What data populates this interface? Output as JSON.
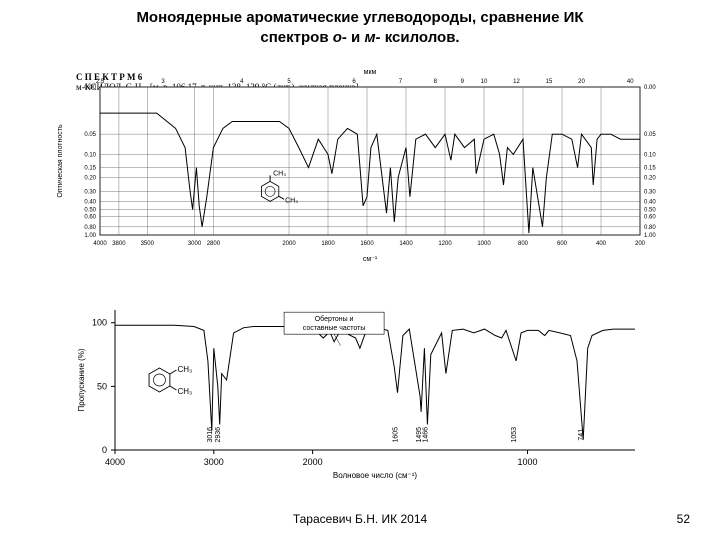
{
  "title_line1": "Моноядерные ароматические углеводороды, сравнение ИК",
  "title_line2": "спектров о- и м- ксилолов.",
  "spectr_header": "С П Е К Т Р  М  6",
  "spectr_sub": "м-КСИЛОЛ, С₈Н₁₀ [м. в. 106,17. т. кип. 138−139 °С (лит.). жидкая пленка].",
  "footer": "Тарасевич Б.Н.  ИК 2014",
  "page": "52",
  "chart_top": {
    "type": "line",
    "xlim": [
      4000,
      200
    ],
    "ylim": [
      0.0,
      1.0
    ],
    "x_axis_label": "см⁻¹",
    "y_axis_label": "Оптическая плотность",
    "top_axis_label": "мкм",
    "top_ticks": [
      2.5,
      3,
      4,
      5,
      6,
      7,
      8,
      9,
      10,
      12,
      15,
      20,
      40
    ],
    "x_ticks": [
      4000,
      3800,
      3500,
      3000,
      2800,
      2000,
      1800,
      1600,
      1400,
      1200,
      1000,
      800,
      600,
      400,
      200
    ],
    "y_ticks_left": [
      0.0,
      0.05,
      0.1,
      0.15,
      0.2,
      0.3,
      0.4,
      0.5,
      0.6,
      0.8,
      1.0
    ],
    "y_ticks_right": [
      0.0,
      0.05,
      0.1,
      0.15,
      0.2,
      0.3,
      0.4,
      0.5,
      0.6,
      0.8,
      1.0
    ],
    "grid_color": "#555555",
    "line_color": "#000000",
    "background_color": "#ffffff",
    "insert_label1": "СН₃",
    "insert_label2": "СН₃",
    "spectrum": [
      [
        4000,
        0.02
      ],
      [
        3800,
        0.02
      ],
      [
        3600,
        0.02
      ],
      [
        3400,
        0.02
      ],
      [
        3200,
        0.04
      ],
      [
        3100,
        0.08
      ],
      [
        3050,
        0.28
      ],
      [
        3020,
        0.5
      ],
      [
        2980,
        0.15
      ],
      [
        2950,
        0.45
      ],
      [
        2920,
        0.8
      ],
      [
        2870,
        0.35
      ],
      [
        2800,
        0.08
      ],
      [
        2700,
        0.04
      ],
      [
        2600,
        0.03
      ],
      [
        2500,
        0.03
      ],
      [
        2400,
        0.03
      ],
      [
        2300,
        0.03
      ],
      [
        2200,
        0.03
      ],
      [
        2100,
        0.03
      ],
      [
        2000,
        0.04
      ],
      [
        1950,
        0.08
      ],
      [
        1900,
        0.15
      ],
      [
        1850,
        0.06
      ],
      [
        1800,
        0.1
      ],
      [
        1780,
        0.18
      ],
      [
        1750,
        0.06
      ],
      [
        1700,
        0.04
      ],
      [
        1650,
        0.05
      ],
      [
        1620,
        0.45
      ],
      [
        1600,
        0.35
      ],
      [
        1580,
        0.08
      ],
      [
        1550,
        0.05
      ],
      [
        1500,
        0.55
      ],
      [
        1480,
        0.15
      ],
      [
        1460,
        0.7
      ],
      [
        1440,
        0.2
      ],
      [
        1400,
        0.08
      ],
      [
        1380,
        0.35
      ],
      [
        1350,
        0.06
      ],
      [
        1300,
        0.05
      ],
      [
        1250,
        0.08
      ],
      [
        1200,
        0.05
      ],
      [
        1170,
        0.12
      ],
      [
        1150,
        0.05
      ],
      [
        1100,
        0.08
      ],
      [
        1050,
        0.06
      ],
      [
        1040,
        0.18
      ],
      [
        1000,
        0.06
      ],
      [
        950,
        0.05
      ],
      [
        920,
        0.1
      ],
      [
        900,
        0.25
      ],
      [
        880,
        0.08
      ],
      [
        850,
        0.1
      ],
      [
        800,
        0.06
      ],
      [
        770,
        0.95
      ],
      [
        750,
        0.15
      ],
      [
        700,
        0.8
      ],
      [
        680,
        0.2
      ],
      [
        650,
        0.05
      ],
      [
        600,
        0.05
      ],
      [
        550,
        0.06
      ],
      [
        520,
        0.15
      ],
      [
        500,
        0.05
      ],
      [
        450,
        0.08
      ],
      [
        440,
        0.25
      ],
      [
        420,
        0.06
      ],
      [
        400,
        0.05
      ],
      [
        350,
        0.05
      ],
      [
        300,
        0.06
      ],
      [
        250,
        0.06
      ],
      [
        200,
        0.06
      ]
    ]
  },
  "chart_bottom": {
    "type": "line",
    "xlim": [
      4000,
      500
    ],
    "ylim": [
      0,
      110
    ],
    "x_axis_label": "Волновое число (см⁻¹)",
    "y_axis_label": "Пропускание (%)",
    "x_ticks": [
      4000,
      3000,
      2000,
      1000
    ],
    "y_ticks": [
      0,
      50,
      100
    ],
    "grid_color": "#e0e0e0",
    "line_color": "#000000",
    "background_color": "#ffffff",
    "annotation": "Обертоны и составные частоты",
    "insert_label1": "СН₃",
    "insert_label2": "СН₃",
    "peak_labels": [
      "3016",
      "2936",
      "1605",
      "1495",
      "1466",
      "1053",
      "741"
    ],
    "spectrum": [
      [
        4000,
        98
      ],
      [
        3800,
        98
      ],
      [
        3600,
        98
      ],
      [
        3400,
        98
      ],
      [
        3200,
        97
      ],
      [
        3100,
        94
      ],
      [
        3060,
        70
      ],
      [
        3020,
        15
      ],
      [
        3000,
        80
      ],
      [
        2960,
        50
      ],
      [
        2940,
        20
      ],
      [
        2920,
        60
      ],
      [
        2870,
        55
      ],
      [
        2800,
        92
      ],
      [
        2700,
        96
      ],
      [
        2600,
        97
      ],
      [
        2500,
        97
      ],
      [
        2400,
        97
      ],
      [
        2300,
        97
      ],
      [
        2200,
        97
      ],
      [
        2100,
        97
      ],
      [
        2000,
        96
      ],
      [
        1950,
        88
      ],
      [
        1920,
        93
      ],
      [
        1900,
        85
      ],
      [
        1870,
        94
      ],
      [
        1800,
        88
      ],
      [
        1780,
        80
      ],
      [
        1750,
        94
      ],
      [
        1700,
        96
      ],
      [
        1650,
        94
      ],
      [
        1620,
        65
      ],
      [
        1605,
        45
      ],
      [
        1580,
        90
      ],
      [
        1550,
        95
      ],
      [
        1500,
        42
      ],
      [
        1495,
        30
      ],
      [
        1480,
        80
      ],
      [
        1466,
        20
      ],
      [
        1450,
        75
      ],
      [
        1400,
        92
      ],
      [
        1380,
        60
      ],
      [
        1350,
        94
      ],
      [
        1300,
        95
      ],
      [
        1250,
        92
      ],
      [
        1200,
        95
      ],
      [
        1150,
        90
      ],
      [
        1120,
        88
      ],
      [
        1100,
        94
      ],
      [
        1053,
        70
      ],
      [
        1030,
        92
      ],
      [
        1000,
        94
      ],
      [
        950,
        94
      ],
      [
        920,
        90
      ],
      [
        900,
        94
      ],
      [
        850,
        92
      ],
      [
        800,
        90
      ],
      [
        770,
        70
      ],
      [
        741,
        8
      ],
      [
        720,
        80
      ],
      [
        700,
        90
      ],
      [
        650,
        94
      ],
      [
        600,
        95
      ],
      [
        550,
        95
      ],
      [
        500,
        95
      ]
    ]
  }
}
